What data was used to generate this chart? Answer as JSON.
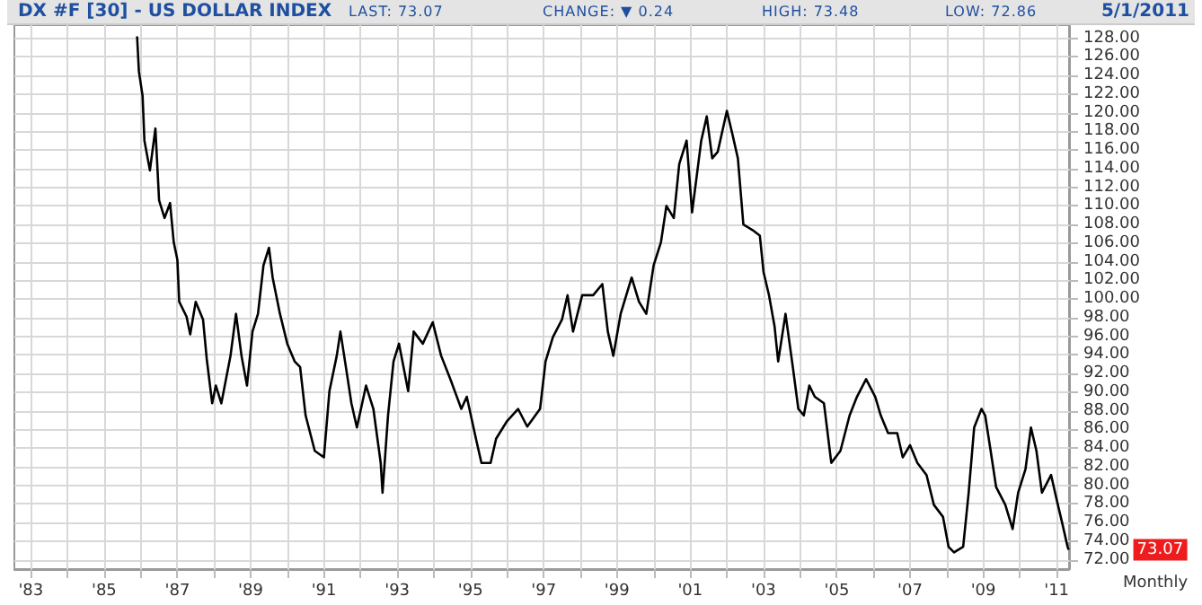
{
  "chart_data": {
    "type": "line",
    "title": "DX #F [30] - US DOLLAR INDEX",
    "annotations": [
      "LAST: 73.07",
      "CHANGE: ▼ 0.24",
      "HIGH: 73.48",
      "LOW: 72.86",
      "5/1/2011",
      "73.07",
      "Monthly"
    ],
    "x": [
      1985.9,
      1985.95,
      1986.05,
      1986.1,
      1986.25,
      1986.4,
      1986.5,
      1986.65,
      1986.8,
      1986.9,
      1987.0,
      1987.05,
      1987.25,
      1987.35,
      1987.5,
      1987.7,
      1987.8,
      1987.95,
      1988.05,
      1988.2,
      1988.45,
      1988.6,
      1988.75,
      1988.9,
      1989.05,
      1989.2,
      1989.35,
      1989.5,
      1989.6,
      1989.8,
      1990.0,
      1990.2,
      1990.35,
      1990.5,
      1990.75,
      1991.0,
      1991.15,
      1991.35,
      1991.45,
      1991.6,
      1991.75,
      1991.9,
      1992.15,
      1992.35,
      1992.55,
      1992.6,
      1992.75,
      1992.9,
      1993.05,
      1993.3,
      1993.45,
      1993.7,
      1993.97,
      1994.2,
      1994.45,
      1994.75,
      1994.9,
      1995.15,
      1995.3,
      1995.55,
      1995.7,
      1996.0,
      1996.3,
      1996.55,
      1996.9,
      1997.05,
      1997.25,
      1997.5,
      1997.65,
      1997.8,
      1998.05,
      1998.35,
      1998.6,
      1998.75,
      1998.9,
      1999.1,
      1999.4,
      1999.6,
      1999.8,
      2000.0,
      2000.2,
      2000.35,
      2000.55,
      2000.7,
      2000.9,
      2001.05,
      2001.3,
      2001.45,
      2001.6,
      2001.75,
      2002.0,
      2002.15,
      2002.3,
      2002.45,
      2002.7,
      2002.9,
      2003.0,
      2003.15,
      2003.3,
      2003.4,
      2003.6,
      2003.8,
      2003.95,
      2004.1,
      2004.25,
      2004.4,
      2004.65,
      2004.85,
      2005.1,
      2005.35,
      2005.55,
      2005.8,
      2006.05,
      2006.2,
      2006.4,
      2006.65,
      2006.8,
      2007.0,
      2007.2,
      2007.45,
      2007.65,
      2007.9,
      2008.05,
      2008.2,
      2008.45,
      2008.6,
      2008.75,
      2008.95,
      2009.05,
      2009.2,
      2009.35,
      2009.6,
      2009.8,
      2009.95,
      2010.15,
      2010.3,
      2010.45,
      2010.6,
      2010.85,
      2011.0,
      2011.15,
      2011.3,
      2011.33
    ],
    "values": [
      128.2,
      124.4,
      121.8,
      117,
      113.8,
      118.3,
      110.6,
      108.7,
      110.3,
      106.1,
      104.2,
      99.7,
      98.1,
      96.2,
      99.7,
      97.8,
      93.6,
      88.8,
      90.7,
      88.8,
      93.9,
      98.4,
      93.9,
      90.7,
      96.5,
      98.4,
      103.6,
      105.5,
      102.3,
      98.4,
      95.2,
      93.3,
      92.7,
      87.5,
      83.7,
      83.0,
      90.1,
      93.9,
      96.5,
      92.7,
      88.8,
      86.2,
      90.7,
      88.2,
      82.4,
      79.2,
      87.5,
      93.3,
      95.2,
      90.1,
      96.5,
      95.2,
      97.5,
      93.9,
      91.4,
      88.2,
      89.5,
      85.0,
      82.4,
      82.4,
      85.0,
      86.9,
      88.2,
      86.3,
      88.2,
      93.3,
      95.9,
      97.8,
      100.4,
      96.5,
      100.4,
      100.4,
      101.6,
      96.5,
      93.9,
      98.4,
      102.3,
      99.7,
      98.4,
      103.6,
      106.1,
      110.0,
      108.7,
      114.5,
      117.0,
      109.3,
      117,
      119.6,
      115.1,
      115.8,
      120.2,
      117.7,
      115.1,
      108.0,
      107.4,
      106.8,
      102.9,
      100.4,
      97.1,
      93.3,
      98.4,
      92.7,
      88.2,
      87.5,
      90.7,
      89.5,
      88.8,
      82.4,
      83.7,
      87.5,
      89.5,
      91.4,
      89.5,
      87.5,
      85.6,
      85.6,
      83.0,
      84.3,
      82.4,
      81.1,
      77.9,
      76.6,
      73.4,
      72.8,
      73.4,
      79.2,
      86.2,
      88.2,
      87.5,
      83.7,
      79.8,
      77.9,
      75.3,
      79.2,
      81.7,
      86.2,
      83.7,
      79.2,
      81.1,
      78.5,
      76.0,
      73.4,
      73.07
    ],
    "color": "#000000",
    "xlim": [
      1982.55,
      2011.34
    ],
    "xticks": [
      {
        "value": 1983,
        "label": "'83"
      },
      {
        "value": 1984,
        "label": null
      },
      {
        "value": 1985,
        "label": "'85"
      },
      {
        "value": 1986,
        "label": null
      },
      {
        "value": 1987,
        "label": "'87"
      },
      {
        "value": 1988,
        "label": null
      },
      {
        "value": 1989,
        "label": "'89"
      },
      {
        "value": 1990,
        "label": null
      },
      {
        "value": 1991,
        "label": "'91"
      },
      {
        "value": 1992,
        "label": null
      },
      {
        "value": 1993,
        "label": "'93"
      },
      {
        "value": 1994,
        "label": null
      },
      {
        "value": 1995,
        "label": "'95"
      },
      {
        "value": 1996,
        "label": null
      },
      {
        "value": 1997,
        "label": "'97"
      },
      {
        "value": 1998,
        "label": null
      },
      {
        "value": 1999,
        "label": "'99"
      },
      {
        "value": 2000,
        "label": null
      },
      {
        "value": 2001,
        "label": "'01"
      },
      {
        "value": 2002,
        "label": null
      },
      {
        "value": 2003,
        "label": "'03"
      },
      {
        "value": 2004,
        "label": null
      },
      {
        "value": 2005,
        "label": "'05"
      },
      {
        "value": 2006,
        "label": null
      },
      {
        "value": 2007,
        "label": "'07"
      },
      {
        "value": 2008,
        "label": null
      },
      {
        "value": 2009,
        "label": "'09"
      },
      {
        "value": 2010,
        "label": null
      },
      {
        "value": 2011,
        "label": "'11"
      }
    ],
    "ylim": [
      71,
      129.4
    ],
    "yticks": [
      {
        "value": 72,
        "label": "72.00"
      },
      {
        "value": 74,
        "label": "74.00"
      },
      {
        "value": 76,
        "label": "76.00"
      },
      {
        "value": 78,
        "label": "78.00"
      },
      {
        "value": 80,
        "label": "80.00"
      },
      {
        "value": 82,
        "label": "82.00"
      },
      {
        "value": 84,
        "label": "84.00"
      },
      {
        "value": 86,
        "label": "86.00"
      },
      {
        "value": 88,
        "label": "88.00"
      },
      {
        "value": 90,
        "label": "90.00"
      },
      {
        "value": 92,
        "label": "92.00"
      },
      {
        "value": 94,
        "label": "94.00"
      },
      {
        "value": 96,
        "label": "96.00"
      },
      {
        "value": 98,
        "label": "98.00"
      },
      {
        "value": 100,
        "label": "100.00"
      },
      {
        "value": 102,
        "label": "102.00"
      },
      {
        "value": 104,
        "label": "104.00"
      },
      {
        "value": 106,
        "label": "106.00"
      },
      {
        "value": 108,
        "label": "108.00"
      },
      {
        "value": 110,
        "label": "110.00"
      },
      {
        "value": 112,
        "label": "112.00"
      },
      {
        "value": 114,
        "label": "114.00"
      },
      {
        "value": 116,
        "label": "116.00"
      },
      {
        "value": 118,
        "label": "118.00"
      },
      {
        "value": 120,
        "label": "120.00"
      },
      {
        "value": 122,
        "label": "122.00"
      },
      {
        "value": 124,
        "label": "124.00"
      },
      {
        "value": 126,
        "label": "126.00"
      },
      {
        "value": 128,
        "label": "128.00"
      }
    ],
    "grid": true,
    "marker": "none",
    "line_style": "solid"
  }
}
